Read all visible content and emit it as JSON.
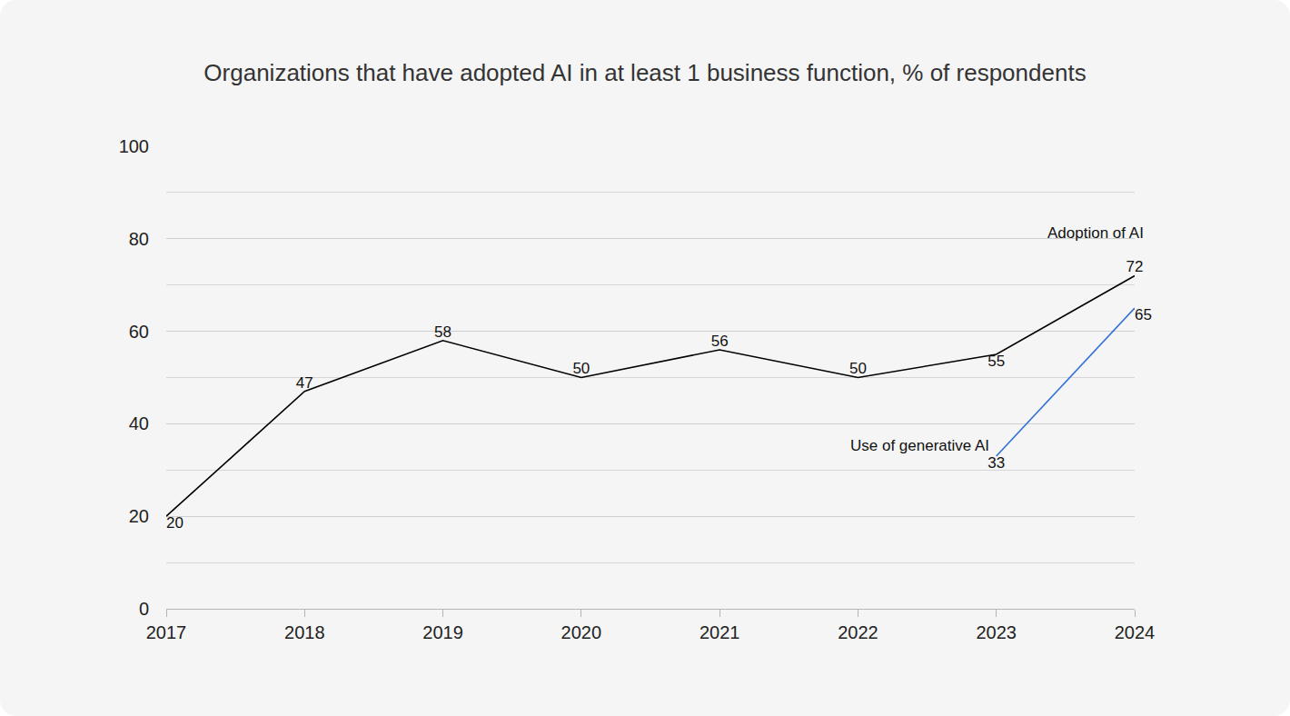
{
  "chart_data": {
    "type": "line",
    "title": "Organizations that have adopted AI in at least 1 business function, % of respondents",
    "x": [
      2017,
      2018,
      2019,
      2020,
      2021,
      2022,
      2023,
      2024
    ],
    "xlim": [
      2017,
      2024
    ],
    "xticks": [
      2017,
      2018,
      2019,
      2020,
      2021,
      2022,
      2023,
      2024
    ],
    "ylim": [
      0,
      100
    ],
    "yticks": [
      0,
      20,
      40,
      60,
      80,
      100
    ],
    "grid": true,
    "data_labels": true,
    "series": [
      {
        "name": "Adoption of AI",
        "color": "#000000",
        "values": [
          20,
          47,
          58,
          50,
          56,
          50,
          55,
          72
        ]
      },
      {
        "name": "Use of generative AI",
        "color": "#2f6fd6",
        "values": [
          null,
          null,
          null,
          null,
          null,
          null,
          33,
          65
        ]
      }
    ]
  }
}
